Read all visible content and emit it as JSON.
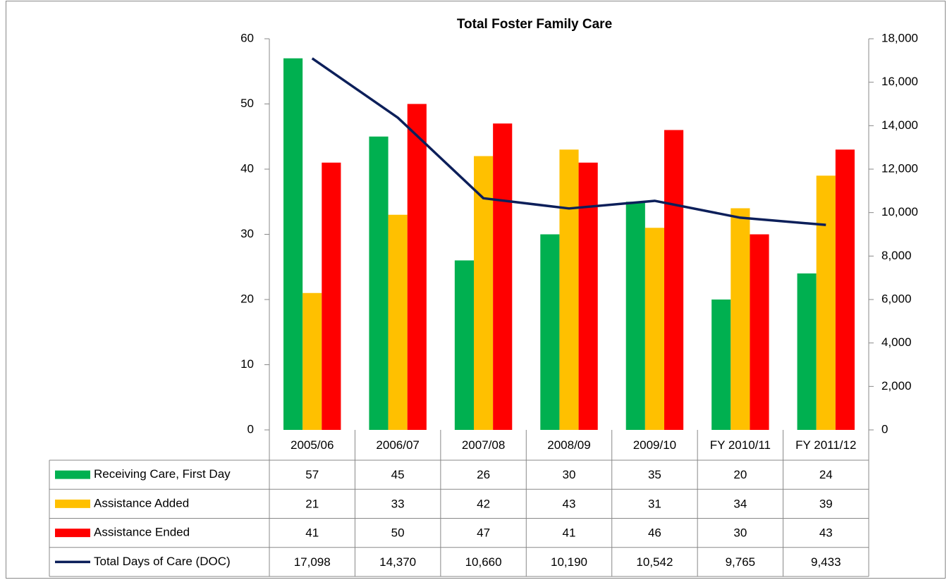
{
  "chart_data": {
    "type": "bar",
    "title": "Total Foster Family Care",
    "categories": [
      "2005/06",
      "2006/07",
      "2007/08",
      "2008/09",
      "2009/10",
      "FY 2010/11",
      "FY 2011/12"
    ],
    "series": [
      {
        "name": "Receiving Care, First Day",
        "color": "#00b050",
        "type": "bar",
        "values": [
          57,
          45,
          26,
          30,
          35,
          20,
          24
        ]
      },
      {
        "name": "Assistance Added",
        "color": "#ffc000",
        "type": "bar",
        "values": [
          21,
          33,
          42,
          43,
          31,
          34,
          39
        ]
      },
      {
        "name": "Assistance Ended",
        "color": "#ff0000",
        "type": "bar",
        "values": [
          41,
          50,
          47,
          41,
          46,
          30,
          43
        ]
      },
      {
        "name": "Total Days of Care (DOC)",
        "color": "#0c1f5a",
        "type": "line",
        "axis": "y2",
        "values": [
          17098,
          14370,
          10660,
          10190,
          10542,
          9765,
          9433
        ],
        "value_labels": [
          "17,098",
          "14,370",
          "10,660",
          "10,190",
          "10,542",
          "9,765",
          "9,433"
        ]
      }
    ],
    "ylim": [
      0,
      60
    ],
    "yticks": [
      0,
      10,
      20,
      30,
      40,
      50,
      60
    ],
    "y2lim": [
      0,
      18000
    ],
    "y2ticks": [
      0,
      {
        "value": 2000,
        "label": "2,000"
      },
      {
        "value": 4000,
        "label": "4,000"
      },
      {
        "value": 6000,
        "label": "6,000"
      },
      {
        "value": 8000,
        "label": "8,000"
      },
      {
        "value": 10000,
        "label": "10,000"
      },
      {
        "value": 12000,
        "label": "12,000"
      },
      {
        "value": 14000,
        "label": "14,000"
      },
      {
        "value": 16000,
        "label": "16,000"
      },
      {
        "value": 18000,
        "label": "18,000"
      }
    ],
    "grid": false
  }
}
